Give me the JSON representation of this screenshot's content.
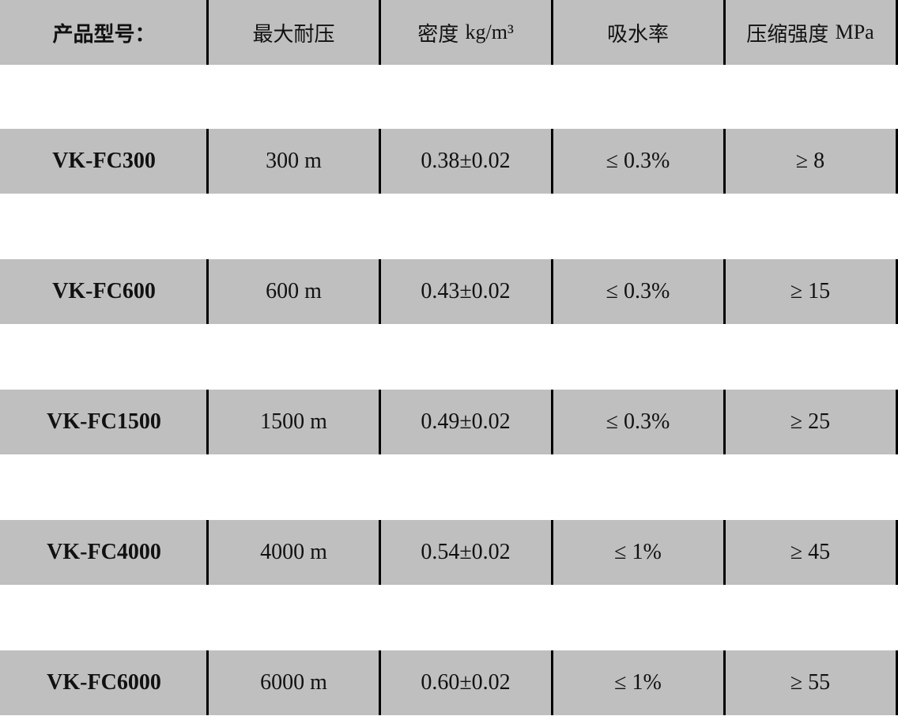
{
  "header": {
    "model": "产品型号：",
    "max_pressure": "最大耐压",
    "density_label": "密度",
    "density_unit": "kg/m³",
    "water_absorption": "吸水率",
    "strength_label": "压缩强度",
    "strength_unit": "MPa"
  },
  "rows": [
    {
      "model": "VK-FC300",
      "max_pressure": "300 m",
      "density": "0.38±0.02",
      "water_absorption": "≤ 0.3%",
      "strength": "≥ 8"
    },
    {
      "model": "VK-FC600",
      "max_pressure": "600 m",
      "density": "0.43±0.02",
      "water_absorption": "≤ 0.3%",
      "strength": "≥ 15"
    },
    {
      "model": "VK-FC1500",
      "max_pressure": "1500 m",
      "density": "0.49±0.02",
      "water_absorption": "≤ 0.3%",
      "strength": "≥ 25"
    },
    {
      "model": "VK-FC4000",
      "max_pressure": "4000 m",
      "density": "0.54±0.02",
      "water_absorption": "≤ 1%",
      "strength": "≥ 45"
    },
    {
      "model": "VK-FC6000",
      "max_pressure": "6000 m",
      "density": "0.60±0.02",
      "water_absorption": "≤ 1%",
      "strength": "≥ 55"
    }
  ]
}
